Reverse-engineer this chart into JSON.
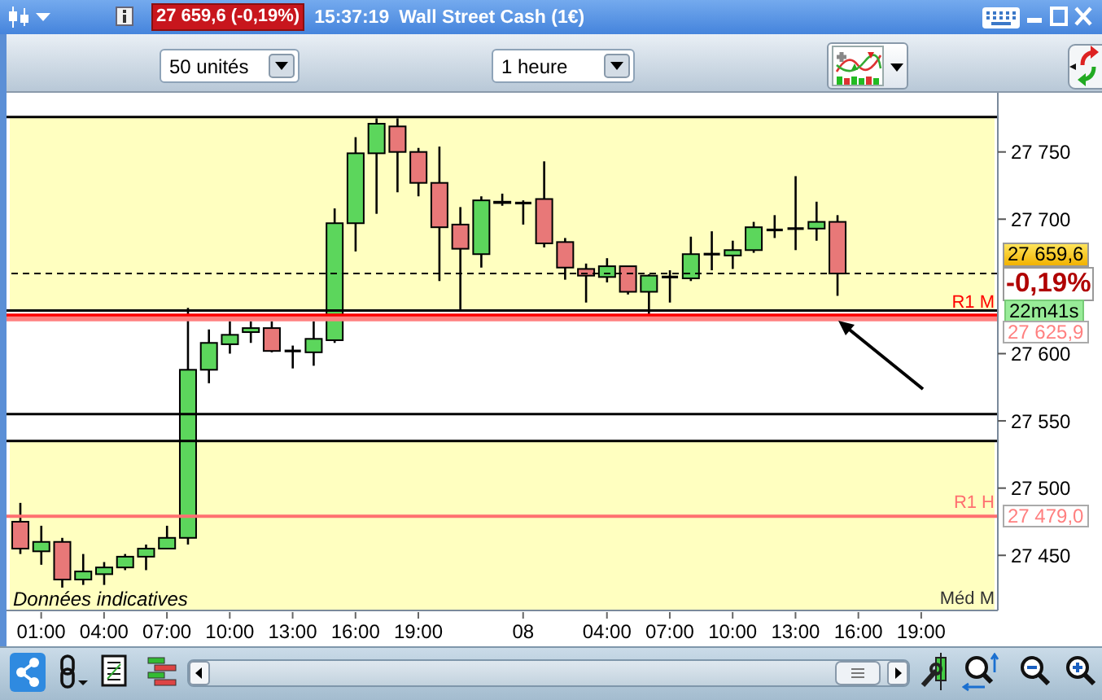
{
  "chart_data": {
    "type": "candlestick",
    "title": "Wall Street Cash (1€)",
    "subtitle": "27 659,6 (-0,19%)",
    "categories": [
      null,
      "01:00",
      null,
      null,
      "04:00",
      null,
      null,
      "07:00",
      null,
      null,
      "10:00",
      null,
      null,
      "13:00",
      null,
      null,
      "16:00",
      null,
      null,
      "19:00",
      null,
      null,
      null,
      null,
      "08",
      null,
      null,
      null,
      "04:00",
      null,
      null,
      "07:00",
      null,
      null,
      "10:00",
      null,
      null,
      "13:00",
      null,
      null,
      "16:00",
      null,
      null,
      "19:00",
      null,
      null,
      null
    ],
    "ohlc": [
      [
        27475,
        27489,
        27451,
        27455
      ],
      [
        27453,
        27472,
        27443,
        27460
      ],
      [
        27460,
        27463,
        27426,
        27432
      ],
      [
        27432,
        27451,
        27428,
        27438
      ],
      [
        27436,
        27445,
        27428,
        27441
      ],
      [
        27441,
        27451,
        27439,
        27449
      ],
      [
        27449,
        27458,
        27439,
        27455
      ],
      [
        27455,
        27472,
        27455,
        27463
      ],
      [
        27463,
        27634,
        27458,
        27588
      ],
      [
        27588,
        27618,
        27578,
        27608
      ],
      [
        27607,
        27624,
        27600,
        27614
      ],
      [
        27616,
        27624,
        27608,
        27619
      ],
      [
        27619,
        27624,
        27601,
        27602
      ],
      [
        27602,
        27606,
        27589,
        27602
      ],
      [
        27601,
        27624,
        27591,
        27611
      ],
      [
        27610,
        27708,
        27608,
        27697
      ],
      [
        27697,
        27761,
        27676,
        27749
      ],
      [
        27749,
        27775,
        27704,
        27771
      ],
      [
        27769,
        27775,
        27720,
        27750
      ],
      [
        27750,
        27753,
        27717,
        27727
      ],
      [
        27727,
        27754,
        27654,
        27694
      ],
      [
        27696,
        27709,
        27633,
        27678
      ],
      [
        27674,
        27717,
        27664,
        27714
      ],
      [
        27713,
        27719,
        27710,
        27712
      ],
      [
        27712,
        27714,
        27696,
        27712
      ],
      [
        27715,
        27743,
        27679,
        27682
      ],
      [
        27683,
        27686,
        27655,
        27664
      ],
      [
        27663,
        27667,
        27638,
        27658
      ],
      [
        27657,
        27671,
        27653,
        27665
      ],
      [
        27665,
        27665,
        27644,
        27646
      ],
      [
        27646,
        27659,
        27629,
        27658
      ],
      [
        27657,
        27662,
        27638,
        27657
      ],
      [
        27656,
        27687,
        27654,
        27674
      ],
      [
        27674,
        27691,
        27662,
        27674
      ],
      [
        27673,
        27684,
        27663,
        27677
      ],
      [
        27677,
        27698,
        27675,
        27694
      ],
      [
        27692,
        27703,
        27686,
        27692
      ],
      [
        27693,
        27732,
        27677,
        27693
      ],
      [
        27693,
        27713,
        27684,
        27698
      ],
      [
        27698,
        27703,
        27643,
        27659.6
      ],
      null,
      null,
      null,
      null,
      null,
      null,
      null
    ],
    "colors": [
      "#e87878",
      "#5cd65c",
      "#e87878",
      "#5cd65c",
      "#5cd65c",
      "#5cd65c",
      "#5cd65c",
      "#5cd65c",
      "#5cd65c",
      "#5cd65c",
      "#5cd65c",
      "#5cd65c",
      "#e87878",
      "#000000",
      "#5cd65c",
      "#5cd65c",
      "#5cd65c",
      "#5cd65c",
      "#e87878",
      "#e87878",
      "#e87878",
      "#e87878",
      "#5cd65c",
      "#e87878",
      "#000000",
      "#e87878",
      "#e87878",
      "#e87878",
      "#5cd65c",
      "#e87878",
      "#5cd65c",
      "#000000",
      "#5cd65c",
      "#000000",
      "#5cd65c",
      "#5cd65c",
      "#000000",
      "#000000",
      "#5cd65c",
      "#e87878",
      null,
      null,
      null,
      null,
      null,
      null,
      null
    ],
    "ylim": [
      27409,
      27794
    ],
    "yticks": [
      {
        "value": 27450,
        "label": "27 450"
      },
      {
        "value": 27500,
        "label": "27 500"
      },
      {
        "value": 27550,
        "label": "27 550"
      },
      {
        "value": 27600,
        "label": "27 600"
      },
      {
        "value": 27700,
        "label": "27 700"
      },
      {
        "value": 27750,
        "label": "27 750"
      }
    ],
    "bands": [
      {
        "axis": "y",
        "from": 27632,
        "to": 27776,
        "color": "#ffffc0"
      },
      {
        "axis": "y",
        "from": 27409,
        "to": 27535,
        "color": "#ffffc0"
      }
    ],
    "ref_lines": [
      {
        "axis": "y",
        "value": 27776,
        "color": "#000000"
      },
      {
        "axis": "y",
        "value": 27659.6,
        "color": "#000000",
        "line_style": "dashed"
      },
      {
        "axis": "y",
        "value": 27632,
        "color": "#000000"
      },
      {
        "axis": "y",
        "value": 27628,
        "label": "R1 M",
        "color": "#ff0000"
      },
      {
        "axis": "y",
        "value": 27625.9,
        "color": "#ff8080"
      },
      {
        "axis": "y",
        "value": 27555,
        "color": "#000000"
      },
      {
        "axis": "y",
        "value": 27535,
        "color": "#000000"
      },
      {
        "axis": "y",
        "value": 27479,
        "label": "R1 H",
        "color": "#ff7070"
      }
    ],
    "annotations": [
      "15:37:19",
      "50 unités",
      "1 heure",
      "Données indicatives",
      "27 659,6",
      "-0,19%",
      "22m41s",
      "27 625,9",
      "27 479,0",
      "Méd M"
    ]
  }
}
